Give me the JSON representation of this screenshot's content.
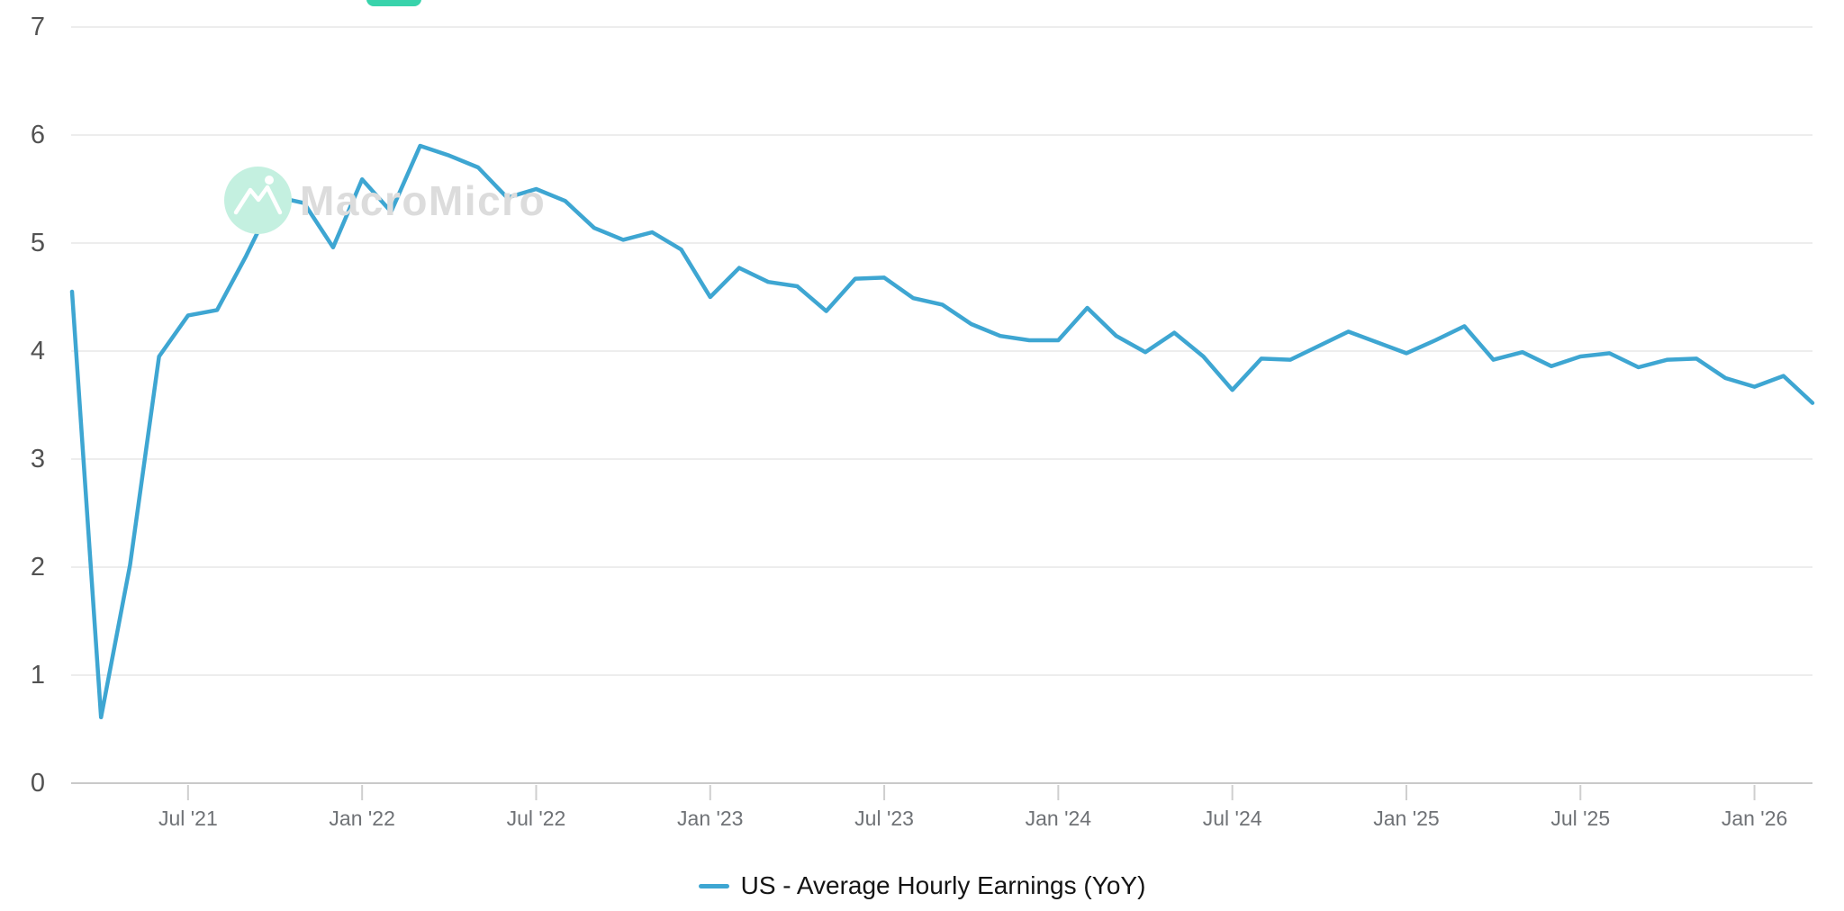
{
  "page": {
    "background": "#ffffff"
  },
  "top_button": {
    "color": "#38d3ab"
  },
  "watermark": {
    "text": "MacroMicro",
    "circle_color": "#c4f0e0",
    "logo": "mountain-peaks-icon",
    "text_color": "#dcdcdc"
  },
  "legend": {
    "items": [
      {
        "label": "US - Average Hourly Earnings (YoY)",
        "color": "#3ea6d2"
      }
    ]
  },
  "axis_colors": {
    "gridline": "#ededed",
    "axis_line": "#c9c9c9",
    "tick_mark": "#cfcfcf",
    "y_label": "#525252",
    "x_label": "#6f7276"
  },
  "chart_data": {
    "type": "line",
    "title": "",
    "xlabel": "",
    "ylabel": "",
    "ylim": [
      0,
      7
    ],
    "y_ticks": [
      0,
      1,
      2,
      3,
      4,
      5,
      6,
      7
    ],
    "grid": "horizontal-only",
    "legend_position": "bottom",
    "x": [
      "2021-03",
      "2021-04",
      "2021-05",
      "2021-06",
      "2021-07",
      "2021-08",
      "2021-09",
      "2021-10",
      "2021-11",
      "2021-12",
      "2022-01",
      "2022-02",
      "2022-03",
      "2022-04",
      "2022-05",
      "2022-06",
      "2022-07",
      "2022-08",
      "2022-09",
      "2022-10",
      "2022-11",
      "2022-12",
      "2023-01",
      "2023-02",
      "2023-03",
      "2023-04",
      "2023-05",
      "2023-06",
      "2023-07",
      "2023-08",
      "2023-09",
      "2023-10",
      "2023-11",
      "2023-12",
      "2024-01",
      "2024-02",
      "2024-03",
      "2024-04",
      "2024-05",
      "2024-06",
      "2024-07",
      "2024-08",
      "2024-09",
      "2024-10",
      "2024-11",
      "2024-12",
      "2025-01",
      "2025-02",
      "2025-03",
      "2025-04",
      "2025-05",
      "2025-06",
      "2025-07",
      "2025-08",
      "2025-09",
      "2025-10",
      "2025-11",
      "2025-12",
      "2026-01",
      "2026-02",
      "2026-03"
    ],
    "x_tick_labels": [
      "Jul '21",
      "Jan '22",
      "Jul '22",
      "Jan '23",
      "Jul '23",
      "Jan '24",
      "Jul '24",
      "Jan '25",
      "Jul '25",
      "Jan '26"
    ],
    "x_tick_indices": [
      4,
      10,
      16,
      22,
      28,
      34,
      40,
      46,
      52,
      58
    ],
    "series": [
      {
        "name": "US - Average Hourly Earnings (YoY)",
        "color": "#3ea6d2",
        "values": [
          4.55,
          0.61,
          2.02,
          3.95,
          4.33,
          4.38,
          4.88,
          5.43,
          5.37,
          4.96,
          5.59,
          5.29,
          5.9,
          5.81,
          5.7,
          5.42,
          5.5,
          5.39,
          5.14,
          5.03,
          5.1,
          4.94,
          4.5,
          4.77,
          4.64,
          4.6,
          4.37,
          4.67,
          4.68,
          4.49,
          4.43,
          4.25,
          4.14,
          4.1,
          4.1,
          4.4,
          4.14,
          3.99,
          4.17,
          3.95,
          3.64,
          3.93,
          3.92,
          4.05,
          4.18,
          4.08,
          3.98,
          4.1,
          4.23,
          3.92,
          3.99,
          3.86,
          3.95,
          3.98,
          3.85,
          3.92,
          3.93,
          3.75,
          3.67,
          3.77,
          3.52
        ]
      }
    ]
  }
}
